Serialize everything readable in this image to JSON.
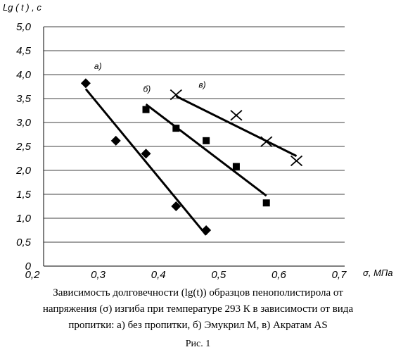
{
  "chart_data": {
    "type": "scatter",
    "ylabel": "Lg ( t ) , c",
    "xlabel": "σ, МПа",
    "xlim": [
      0.2,
      0.7
    ],
    "ylim": [
      0,
      5.0
    ],
    "x_ticks": [
      "0,2",
      "0,3",
      "0,4",
      "0,5",
      "0,6",
      "0,7"
    ],
    "y_ticks": [
      "0",
      "0,5",
      "1,0",
      "1,5",
      "2,0",
      "2,5",
      "3,0",
      "3,5",
      "4,0",
      "4,5",
      "5,0"
    ],
    "grid": "horizontal",
    "series": [
      {
        "name": "а)",
        "marker": "diamond",
        "points": [
          [
            0.27,
            3.82
          ],
          [
            0.32,
            2.62
          ],
          [
            0.37,
            2.35
          ],
          [
            0.42,
            1.25
          ],
          [
            0.47,
            0.75
          ]
        ],
        "trend": [
          [
            0.27,
            3.7
          ],
          [
            0.47,
            0.65
          ]
        ]
      },
      {
        "name": "б)",
        "marker": "square",
        "points": [
          [
            0.37,
            3.27
          ],
          [
            0.42,
            2.88
          ],
          [
            0.47,
            2.62
          ],
          [
            0.52,
            2.08
          ],
          [
            0.57,
            1.32
          ]
        ],
        "trend": [
          [
            0.37,
            3.38
          ],
          [
            0.57,
            1.47
          ]
        ]
      },
      {
        "name": "в)",
        "marker": "cross",
        "points": [
          [
            0.42,
            3.58
          ],
          [
            0.52,
            3.15
          ],
          [
            0.57,
            2.6
          ],
          [
            0.62,
            2.2
          ]
        ],
        "trend": [
          [
            0.42,
            3.55
          ],
          [
            0.62,
            2.3
          ]
        ]
      }
    ]
  },
  "caption": {
    "line1": "Зависимость долговечности (lg(t)) образцов пенополистирола от",
    "line2": "напряжения (σ) изгиба при температуре 293 К в зависимости от вида",
    "line3": "пропитки: а) без пропитки, б) Эмукрил М, в) Акратам AS",
    "figure": "Рис. 1"
  }
}
